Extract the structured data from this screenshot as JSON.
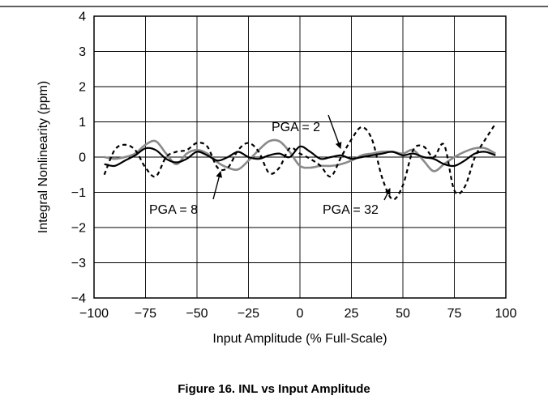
{
  "figure": {
    "caption": "Figure 16. INL vs Input Amplitude"
  },
  "chart_data": {
    "type": "line",
    "title": "",
    "xlabel": "Input Amplitude (% Full-Scale)",
    "ylabel": "Integral Nonlinearity (ppm)",
    "xlim": [
      -100,
      100
    ],
    "ylim": [
      -4,
      4
    ],
    "x_ticks": [
      "−100",
      "−75",
      "−50",
      "−25",
      "0",
      "25",
      "50",
      "75",
      "100"
    ],
    "y_ticks": [
      "4",
      "3",
      "2",
      "1",
      "0",
      "−1",
      "−2",
      "−3",
      "−4"
    ],
    "grid": true,
    "annotations": [
      {
        "text": "PGA = 2",
        "series": "PGA = 2"
      },
      {
        "text": "PGA = 8",
        "series": "PGA = 8"
      },
      {
        "text": "PGA = 32",
        "series": "PGA = 32"
      }
    ],
    "series": [
      {
        "name": "PGA = 2",
        "style": "solid-black",
        "color": "#000000",
        "x": [
          -95,
          -90,
          -85,
          -80,
          -75,
          -70,
          -65,
          -60,
          -55,
          -50,
          -45,
          -40,
          -35,
          -30,
          -25,
          -20,
          -15,
          -10,
          -5,
          0,
          5,
          10,
          15,
          20,
          25,
          30,
          35,
          40,
          45,
          50,
          55,
          60,
          65,
          70,
          75,
          80,
          85,
          90,
          95
        ],
        "y": [
          -0.2,
          -0.25,
          -0.1,
          0.05,
          0.25,
          0.2,
          -0.05,
          -0.15,
          -0.05,
          0.15,
          0.05,
          -0.1,
          0.0,
          0.15,
          0.0,
          -0.05,
          0.05,
          0.1,
          0.0,
          0.3,
          0.15,
          -0.05,
          0.0,
          0.05,
          -0.05,
          0.0,
          0.05,
          0.1,
          0.15,
          0.05,
          0.1,
          0.0,
          -0.05,
          -0.2,
          -0.25,
          -0.1,
          0.1,
          0.15,
          0.05
        ]
      },
      {
        "name": "PGA = 8",
        "style": "solid-gray",
        "color": "#8a8a8a",
        "x": [
          -95,
          -90,
          -85,
          -80,
          -75,
          -70,
          -65,
          -60,
          -55,
          -50,
          -45,
          -40,
          -35,
          -30,
          -25,
          -20,
          -15,
          -10,
          -5,
          0,
          5,
          10,
          15,
          20,
          25,
          30,
          35,
          40,
          45,
          50,
          55,
          60,
          65,
          70,
          75,
          80,
          85,
          90,
          95
        ],
        "y": [
          0.0,
          -0.05,
          0.0,
          0.1,
          0.35,
          0.45,
          0.1,
          -0.2,
          0.1,
          0.2,
          0.1,
          -0.15,
          -0.3,
          -0.35,
          -0.1,
          0.2,
          0.45,
          0.45,
          0.15,
          -0.25,
          -0.3,
          -0.25,
          -0.25,
          -0.2,
          -0.1,
          0.05,
          0.1,
          0.15,
          0.15,
          0.1,
          0.2,
          -0.1,
          -0.4,
          -0.2,
          0.0,
          0.15,
          0.25,
          0.25,
          0.1
        ]
      },
      {
        "name": "PGA = 32",
        "style": "dashed-black",
        "color": "#000000",
        "x": [
          -95,
          -90,
          -85,
          -80,
          -75,
          -70,
          -65,
          -60,
          -55,
          -50,
          -45,
          -40,
          -35,
          -30,
          -25,
          -20,
          -15,
          -10,
          -5,
          0,
          5,
          10,
          15,
          20,
          25,
          30,
          35,
          40,
          45,
          50,
          55,
          60,
          65,
          70,
          75,
          80,
          85,
          90,
          95
        ],
        "y": [
          -0.5,
          0.2,
          0.35,
          0.2,
          -0.3,
          -0.55,
          0.0,
          0.15,
          0.2,
          0.4,
          0.3,
          -0.3,
          -0.3,
          0.2,
          0.4,
          0.15,
          -0.45,
          -0.3,
          0.25,
          0.1,
          -0.05,
          -0.25,
          -0.55,
          0.0,
          0.5,
          0.85,
          0.5,
          -0.6,
          -1.2,
          -0.8,
          0.2,
          0.3,
          0.0,
          0.35,
          -0.95,
          -0.85,
          0.0,
          0.5,
          0.95
        ]
      }
    ]
  }
}
